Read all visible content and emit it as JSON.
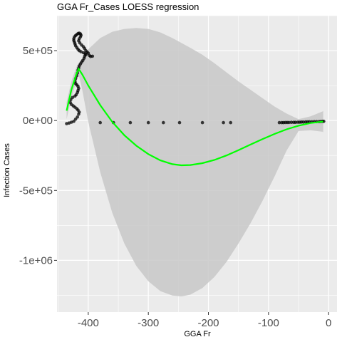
{
  "chart_data": {
    "type": "scatter",
    "title": "GGA Fr_Cases LOESS regression",
    "xlabel": "GGA Fr",
    "ylabel": "Infection Cases",
    "xlim": [
      -452,
      14
    ],
    "ylim": [
      -1370000,
      750000
    ],
    "x_ticks": [
      {
        "value": -400,
        "label": "-400"
      },
      {
        "value": -300,
        "label": "-300"
      },
      {
        "value": -200,
        "label": "-200"
      },
      {
        "value": -100,
        "label": "-100"
      },
      {
        "value": 0,
        "label": "0"
      }
    ],
    "y_ticks": [
      {
        "value": 500000,
        "label": "5e+05"
      },
      {
        "value": 0,
        "label": "0e+00"
      },
      {
        "value": -500000,
        "label": "-5e+05"
      },
      {
        "value": -1000000,
        "label": "-1e+06"
      }
    ],
    "grid": true,
    "colors": {
      "panel": "#ebebeb",
      "grid": "#ffffff",
      "points": "#000000",
      "smooth_line": "#00ff00",
      "confidence_band": "#c8c8c8"
    },
    "points": [
      [
        -436,
        -22000
      ],
      [
        -432,
        -18000
      ],
      [
        -428,
        -12000
      ],
      [
        -424,
        -5000
      ],
      [
        -421,
        10000
      ],
      [
        -418,
        25000
      ],
      [
        -416,
        45000
      ],
      [
        -415,
        60000
      ],
      [
        -417,
        75000
      ],
      [
        -419,
        85000
      ],
      [
        -422,
        95000
      ],
      [
        -425,
        105000
      ],
      [
        -428,
        115000
      ],
      [
        -430,
        130000
      ],
      [
        -429,
        150000
      ],
      [
        -426,
        165000
      ],
      [
        -422,
        175000
      ],
      [
        -420,
        185000
      ],
      [
        -418,
        200000
      ],
      [
        -417,
        215000
      ],
      [
        -416,
        230000
      ],
      [
        -417,
        245000
      ],
      [
        -419,
        255000
      ],
      [
        -421,
        265000
      ],
      [
        -422,
        280000
      ],
      [
        -421,
        300000
      ],
      [
        -419,
        320000
      ],
      [
        -418,
        340000
      ],
      [
        -417,
        360000
      ],
      [
        -416,
        375000
      ],
      [
        -415,
        390000
      ],
      [
        -413,
        405000
      ],
      [
        -411,
        418000
      ],
      [
        -409,
        430000
      ],
      [
        -407,
        445000
      ],
      [
        -406,
        460000
      ],
      [
        -404,
        470000
      ],
      [
        -405,
        478000
      ],
      [
        -408,
        485000
      ],
      [
        -412,
        492000
      ],
      [
        -415,
        500000
      ],
      [
        -417,
        510000
      ],
      [
        -419,
        522000
      ],
      [
        -421,
        535000
      ],
      [
        -422,
        548000
      ],
      [
        -423,
        560000
      ],
      [
        -424,
        572000
      ],
      [
        -424,
        585000
      ],
      [
        -423,
        598000
      ],
      [
        -421,
        608000
      ],
      [
        -419,
        615000
      ],
      [
        -417,
        622000
      ],
      [
        -415,
        625000
      ],
      [
        -413,
        620000
      ],
      [
        -412,
        610000
      ],
      [
        -413,
        598000
      ],
      [
        -415,
        585000
      ],
      [
        -416,
        570000
      ],
      [
        -414,
        555000
      ],
      [
        -411,
        540000
      ],
      [
        -408,
        528000
      ],
      [
        -406,
        515000
      ],
      [
        -404,
        500000
      ],
      [
        -402,
        490000
      ],
      [
        -400,
        482000
      ],
      [
        -398,
        465000
      ],
      [
        -396,
        458000
      ],
      [
        -393,
        460000
      ],
      [
        -380,
        -15000
      ],
      [
        -358,
        -15000
      ],
      [
        -330,
        -15000
      ],
      [
        -300,
        -15000
      ],
      [
        -275,
        -15000
      ],
      [
        -248,
        -15000
      ],
      [
        -210,
        -15000
      ],
      [
        -175,
        -15000
      ],
      [
        -163,
        -15000
      ],
      [
        -82,
        -15000
      ],
      [
        -78,
        -15000
      ],
      [
        -75,
        -15000
      ],
      [
        -72,
        -14000
      ],
      [
        -69,
        -14000
      ],
      [
        -66,
        -14000
      ],
      [
        -62,
        -13000
      ],
      [
        -58,
        -13000
      ],
      [
        -55,
        -13000
      ],
      [
        -51,
        -12000
      ],
      [
        -48,
        -12000
      ],
      [
        -45,
        -11000
      ],
      [
        -42,
        -11000
      ],
      [
        -38,
        -10000
      ],
      [
        -35,
        -10000
      ],
      [
        -32,
        -9000
      ],
      [
        -28,
        -9000
      ],
      [
        -24,
        -8000
      ],
      [
        -20,
        -8000
      ],
      [
        -16,
        -8000
      ],
      [
        -13,
        -7000
      ],
      [
        -10,
        -6000
      ],
      [
        -8,
        -6000
      ]
    ],
    "smooth": {
      "x": [
        -436,
        -428,
        -420,
        -416,
        -410,
        -400,
        -380,
        -360,
        -340,
        -320,
        -300,
        -280,
        -260,
        -245,
        -230,
        -210,
        -190,
        -170,
        -150,
        -130,
        -110,
        -90,
        -70,
        -50,
        -30,
        -10,
        -9
      ],
      "y": [
        70000,
        220000,
        330000,
        370000,
        330000,
        250000,
        110000,
        -10000,
        -105000,
        -180000,
        -240000,
        -285000,
        -312000,
        -320000,
        -318000,
        -305000,
        -282000,
        -250000,
        -212000,
        -172000,
        -133000,
        -96000,
        -63000,
        -37000,
        -18000,
        -8000,
        -8000
      ]
    },
    "confidence_band": {
      "x": [
        -436,
        -428,
        -420,
        -416,
        -410,
        -400,
        -380,
        -360,
        -340,
        -320,
        -300,
        -280,
        -260,
        -245,
        -230,
        -210,
        -190,
        -170,
        -150,
        -130,
        -110,
        -90,
        -70,
        -50,
        -30,
        -10,
        -9
      ],
      "upper": [
        130000,
        280000,
        380000,
        410000,
        440000,
        510000,
        590000,
        635000,
        655000,
        662000,
        655000,
        630000,
        590000,
        555000,
        520000,
        470000,
        410000,
        345000,
        280000,
        220000,
        160000,
        100000,
        50000,
        10000,
        30000,
        65000,
        70000
      ],
      "lower": [
        10000,
        160000,
        280000,
        330000,
        220000,
        -10000,
        -370000,
        -660000,
        -880000,
        -1040000,
        -1150000,
        -1220000,
        -1252000,
        -1258000,
        -1245000,
        -1198000,
        -1118000,
        -1012000,
        -880000,
        -735000,
        -575000,
        -400000,
        -215000,
        -75000,
        -70000,
        -80000,
        -85000
      ]
    }
  }
}
